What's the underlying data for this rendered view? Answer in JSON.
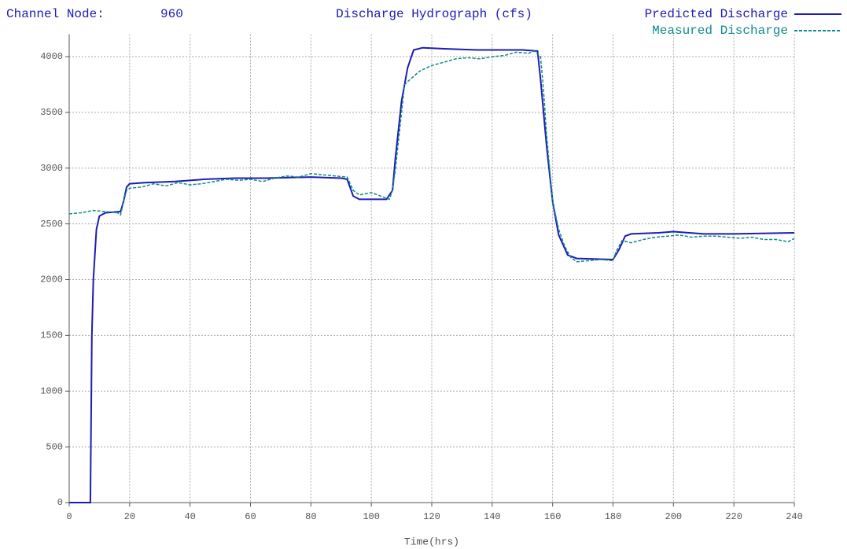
{
  "chart_data": {
    "type": "line",
    "channel_node_label": "Channel Node:",
    "channel_node": 960,
    "title": "Discharge Hydrograph (cfs)",
    "xlabel": "Time(hrs)",
    "xlim": [
      0,
      240
    ],
    "ylim": [
      0,
      4200
    ],
    "xticks": [
      0,
      20,
      40,
      60,
      80,
      100,
      120,
      140,
      160,
      180,
      200,
      220,
      240
    ],
    "yticks": [
      0,
      500,
      1000,
      1500,
      2000,
      2500,
      3000,
      3500,
      4000
    ],
    "grid": true,
    "legend": "top-right",
    "series": [
      {
        "name": "Predicted Discharge",
        "color": "#1c1cb4",
        "dash": false,
        "x": [
          0,
          7,
          7.5,
          8,
          9,
          10,
          12,
          17,
          18,
          19,
          20,
          25,
          35,
          45,
          55,
          65,
          80,
          90,
          92,
          94,
          96,
          105,
          107,
          108,
          110,
          112,
          114,
          117,
          125,
          135,
          150,
          155,
          156,
          158,
          160,
          162,
          165,
          168,
          180,
          182,
          184,
          186,
          195,
          200,
          210,
          220,
          240
        ],
        "values": [
          0,
          0,
          1500,
          2000,
          2450,
          2570,
          2600,
          2610,
          2700,
          2830,
          2860,
          2870,
          2880,
          2900,
          2910,
          2910,
          2920,
          2910,
          2900,
          2750,
          2720,
          2720,
          2800,
          3100,
          3600,
          3900,
          4060,
          4080,
          4070,
          4060,
          4060,
          4050,
          3800,
          3200,
          2700,
          2400,
          2220,
          2190,
          2180,
          2270,
          2390,
          2410,
          2420,
          2430,
          2410,
          2410,
          2420
        ]
      },
      {
        "name": "Measured Discharge",
        "color": "#108a8a",
        "dash": true,
        "x": [
          0,
          4,
          8,
          12,
          16,
          17,
          18,
          19,
          20,
          24,
          28,
          32,
          36,
          40,
          44,
          48,
          52,
          56,
          60,
          64,
          68,
          72,
          76,
          80,
          84,
          88,
          92,
          94,
          96,
          100,
          104,
          106,
          107,
          108,
          110,
          111,
          113,
          116,
          120,
          124,
          128,
          132,
          136,
          140,
          144,
          148,
          152,
          154,
          156,
          157,
          158,
          160,
          162,
          164,
          166,
          168,
          172,
          176,
          180,
          181,
          183,
          186,
          190,
          194,
          198,
          202,
          206,
          210,
          214,
          218,
          222,
          226,
          230,
          234,
          238,
          240
        ],
        "values": [
          2590,
          2600,
          2620,
          2610,
          2600,
          2580,
          2700,
          2800,
          2820,
          2830,
          2860,
          2840,
          2870,
          2850,
          2860,
          2880,
          2900,
          2890,
          2900,
          2880,
          2910,
          2930,
          2920,
          2950,
          2940,
          2930,
          2920,
          2800,
          2760,
          2780,
          2740,
          2720,
          2800,
          3000,
          3500,
          3750,
          3800,
          3870,
          3920,
          3950,
          3980,
          3990,
          3980,
          4000,
          4010,
          4040,
          4030,
          4050,
          4000,
          3700,
          3300,
          2700,
          2450,
          2300,
          2200,
          2160,
          2170,
          2180,
          2170,
          2250,
          2350,
          2330,
          2360,
          2380,
          2390,
          2400,
          2380,
          2390,
          2390,
          2380,
          2370,
          2380,
          2360,
          2360,
          2340,
          2370
        ]
      }
    ]
  }
}
